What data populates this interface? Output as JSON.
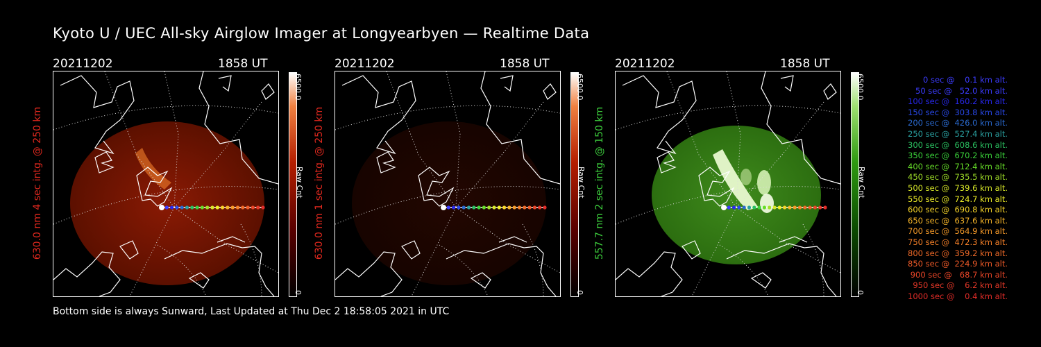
{
  "title": "Kyoto U / UEC All-sky Airglow Imager at Longyearbyen — Realtime Data",
  "footer": "Bottom side is always Sunward, Last Updated at Thu Dec  2 18:58:05 2021 in UTC",
  "panels": [
    {
      "date": "20211202",
      "time": "1858 UT",
      "ylabel": "630.0 nm 4 sec intg. @ 250 km",
      "label_color": "#e0281e",
      "cbar_max": "6500.0",
      "cbar_min": "0",
      "cbar_unit": "Raw Cnt",
      "colormap": "red",
      "brightness": 1.0
    },
    {
      "date": "20211202",
      "time": "1858 UT",
      "ylabel": "630.0 nm 1 sec intg. @ 250 km",
      "label_color": "#e0281e",
      "cbar_max": "6500.0",
      "cbar_min": "0",
      "cbar_unit": "Raw Cnt",
      "colormap": "red",
      "brightness": 0.25
    },
    {
      "date": "20211202",
      "time": "1858 UT",
      "ylabel": "557.7 nm 2 sec intg. @ 150 km",
      "label_color": "#3ccc3c",
      "cbar_max": "6500.0",
      "cbar_min": "0",
      "cbar_unit": "Raw Cnt",
      "colormap": "green",
      "brightness": 1.0
    }
  ],
  "altitudes": [
    {
      "text": "0 sec @    0.1 km alt.",
      "color": "#3c3cff"
    },
    {
      "text": "50 sec @   52.0 km alt.",
      "color": "#3c3cff"
    },
    {
      "text": "100 sec @  160.2 km alt.",
      "color": "#2828ee"
    },
    {
      "text": "150 sec @  303.8 km alt.",
      "color": "#2848e8"
    },
    {
      "text": "200 sec @  426.0 km alt.",
      "color": "#2a6ad0"
    },
    {
      "text": "250 sec @  527.4 km alt.",
      "color": "#2aa0a0"
    },
    {
      "text": "300 sec @  608.6 km alt.",
      "color": "#2ac060"
    },
    {
      "text": "350 sec @  670.2 km alt.",
      "color": "#3ad23a"
    },
    {
      "text": "400 sec @  712.4 km alt.",
      "color": "#66dc28"
    },
    {
      "text": "450 sec @  735.5 km alt.",
      "color": "#a0e028"
    },
    {
      "text": "500 sec @  739.6 km alt.",
      "color": "#d6e628"
    },
    {
      "text": "550 sec @  724.7 km alt.",
      "color": "#f0f028"
    },
    {
      "text": "600 sec @  690.8 km alt.",
      "color": "#f6d428"
    },
    {
      "text": "650 sec @  637.6 km alt.",
      "color": "#f6b428"
    },
    {
      "text": "700 sec @  564.9 km alt.",
      "color": "#f69a28"
    },
    {
      "text": "750 sec @  472.3 km alt.",
      "color": "#f68028"
    },
    {
      "text": "800 sec @  359.2 km alt.",
      "color": "#f06a28"
    },
    {
      "text": "850 sec @  224.9 km alt.",
      "color": "#ee5a28"
    },
    {
      "text": "900 sec @   68.7 km alt.",
      "color": "#ea4628"
    },
    {
      "text": "950 sec @    6.2 km alt.",
      "color": "#e63828"
    },
    {
      "text": "1000 sec @    0.4 km alt.",
      "color": "#e22c28"
    }
  ]
}
